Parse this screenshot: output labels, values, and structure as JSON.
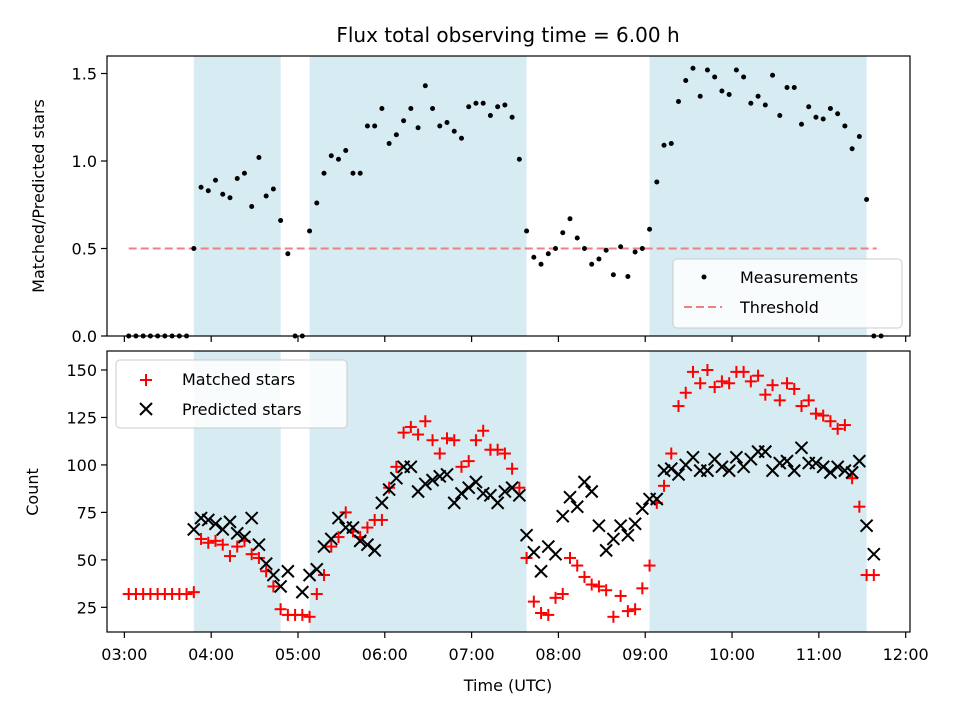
{
  "chart_data": [
    {
      "type": "scatter",
      "title": "Flux total observing time = 6.00 h",
      "xlabel": "",
      "ylabel": "Matched/Predicted stars",
      "xlim": [
        "02:48",
        "12:03"
      ],
      "ylim": [
        0,
        1.6
      ],
      "yticks": [
        0.0,
        0.5,
        1.0,
        1.5
      ],
      "ytick_labels": [
        "0.0",
        "0.5",
        "1.0",
        "1.5"
      ],
      "legend": {
        "location": "lower-right",
        "entries": [
          "Measurements",
          "Threshold"
        ]
      },
      "threshold": {
        "name": "Threshold",
        "value": 0.5,
        "x_start": "03:03",
        "x_end": "11:40",
        "color": "#f07f7f"
      },
      "shaded_intervals": [
        [
          "03:48",
          "04:48"
        ],
        [
          "05:08",
          "07:38"
        ],
        [
          "09:03",
          "11:33"
        ]
      ],
      "series": [
        {
          "name": "Measurements",
          "color": "#000000",
          "marker": "dot",
          "x": [
            "03:03",
            "03:08",
            "03:13",
            "03:18",
            "03:23",
            "03:28",
            "03:33",
            "03:38",
            "03:43",
            "03:48",
            "03:53",
            "03:58",
            "04:03",
            "04:08",
            "04:13",
            "04:18",
            "04:23",
            "04:28",
            "04:33",
            "04:38",
            "04:43",
            "04:48",
            "04:53",
            "04:58",
            "05:03",
            "05:08",
            "05:13",
            "05:18",
            "05:23",
            "05:28",
            "05:33",
            "05:38",
            "05:43",
            "05:48",
            "05:53",
            "05:58",
            "06:03",
            "06:08",
            "06:13",
            "06:18",
            "06:23",
            "06:28",
            "06:33",
            "06:38",
            "06:43",
            "06:48",
            "06:53",
            "06:58",
            "07:03",
            "07:08",
            "07:13",
            "07:18",
            "07:23",
            "07:28",
            "07:33",
            "07:38",
            "07:43",
            "07:48",
            "07:53",
            "07:58",
            "08:03",
            "08:08",
            "08:13",
            "08:18",
            "08:23",
            "08:28",
            "08:33",
            "08:38",
            "08:43",
            "08:48",
            "08:53",
            "08:58",
            "09:03",
            "09:08",
            "09:13",
            "09:18",
            "09:23",
            "09:28",
            "09:33",
            "09:38",
            "09:43",
            "09:48",
            "09:53",
            "09:58",
            "10:03",
            "10:08",
            "10:13",
            "10:18",
            "10:23",
            "10:28",
            "10:33",
            "10:38",
            "10:43",
            "10:48",
            "10:53",
            "10:58",
            "11:03",
            "11:08",
            "11:13",
            "11:18",
            "11:23",
            "11:28",
            "11:33",
            "11:38",
            "11:43"
          ],
          "y": [
            0.0,
            0.0,
            0.0,
            0.0,
            0.0,
            0.0,
            0.0,
            0.0,
            0.0,
            0.5,
            0.85,
            0.83,
            0.89,
            0.81,
            0.79,
            0.9,
            0.93,
            0.74,
            1.02,
            0.8,
            0.84,
            0.66,
            0.47,
            0.0,
            0.0,
            0.6,
            0.76,
            0.93,
            1.03,
            1.01,
            1.06,
            0.93,
            0.93,
            1.2,
            1.2,
            1.3,
            1.1,
            1.15,
            1.23,
            1.3,
            1.19,
            1.43,
            1.3,
            1.2,
            1.22,
            1.17,
            1.13,
            1.31,
            1.33,
            1.33,
            1.26,
            1.31,
            1.32,
            1.25,
            1.01,
            0.6,
            0.45,
            0.41,
            0.47,
            0.5,
            0.59,
            0.67,
            0.56,
            0.5,
            0.41,
            0.44,
            0.49,
            0.35,
            0.51,
            0.34,
            0.48,
            0.5,
            0.61,
            0.88,
            1.09,
            1.1,
            1.34,
            1.46,
            1.53,
            1.37,
            1.52,
            1.48,
            1.4,
            1.38,
            1.52,
            1.48,
            1.33,
            1.37,
            1.32,
            1.49,
            1.26,
            1.42,
            1.42,
            1.21,
            1.31,
            1.25,
            1.24,
            1.3,
            1.27,
            1.2,
            1.07,
            1.14,
            0.78,
            0.0,
            0.0
          ]
        }
      ]
    },
    {
      "type": "scatter",
      "title": "",
      "xlabel": "Time (UTC)",
      "ylabel": "Count",
      "xlim": [
        "02:48",
        "12:03"
      ],
      "ylim": [
        12,
        160
      ],
      "yticks": [
        25,
        50,
        75,
        100,
        125,
        150
      ],
      "ytick_labels": [
        "25",
        "50",
        "75",
        "100",
        "125",
        "150"
      ],
      "xticks": [
        "03:00",
        "04:00",
        "05:00",
        "06:00",
        "07:00",
        "08:00",
        "09:00",
        "10:00",
        "11:00",
        "12:00"
      ],
      "xtick_labels": [
        "03:00",
        "04:00",
        "05:00",
        "06:00",
        "07:00",
        "08:00",
        "09:00",
        "10:00",
        "11:00",
        "12:00"
      ],
      "legend": {
        "location": "upper-left",
        "entries": [
          "Matched stars",
          "Predicted stars"
        ]
      },
      "shaded_intervals": [
        [
          "03:48",
          "04:48"
        ],
        [
          "05:08",
          "07:38"
        ],
        [
          "09:03",
          "11:33"
        ]
      ],
      "series": [
        {
          "name": "Matched stars",
          "color": "#ff0000",
          "marker": "plus",
          "x": [
            "03:03",
            "03:08",
            "03:13",
            "03:18",
            "03:23",
            "03:28",
            "03:33",
            "03:38",
            "03:43",
            "03:48",
            "03:53",
            "03:58",
            "04:03",
            "04:08",
            "04:13",
            "04:18",
            "04:23",
            "04:28",
            "04:33",
            "04:38",
            "04:43",
            "04:48",
            "04:53",
            "04:58",
            "05:03",
            "05:08",
            "05:13",
            "05:18",
            "05:23",
            "05:28",
            "05:33",
            "05:38",
            "05:43",
            "05:48",
            "05:53",
            "05:58",
            "06:03",
            "06:08",
            "06:13",
            "06:18",
            "06:23",
            "06:28",
            "06:33",
            "06:38",
            "06:43",
            "06:48",
            "06:53",
            "06:58",
            "07:03",
            "07:08",
            "07:13",
            "07:18",
            "07:23",
            "07:28",
            "07:33",
            "07:38",
            "07:43",
            "07:48",
            "07:53",
            "07:58",
            "08:03",
            "08:08",
            "08:13",
            "08:18",
            "08:23",
            "08:28",
            "08:33",
            "08:38",
            "08:43",
            "08:48",
            "08:53",
            "08:58",
            "09:03",
            "09:08",
            "09:13",
            "09:18",
            "09:23",
            "09:28",
            "09:33",
            "09:38",
            "09:43",
            "09:48",
            "09:53",
            "09:58",
            "10:03",
            "10:08",
            "10:13",
            "10:18",
            "10:23",
            "10:28",
            "10:33",
            "10:38",
            "10:43",
            "10:48",
            "10:53",
            "10:58",
            "11:03",
            "11:08",
            "11:13",
            "11:18",
            "11:23",
            "11:28",
            "11:33",
            "11:38",
            "11:43"
          ],
          "y": [
            32,
            32,
            32,
            32,
            32,
            32,
            32,
            32,
            32,
            33,
            61,
            59,
            60,
            58,
            52,
            57,
            60,
            53,
            51,
            44,
            36,
            24,
            21,
            21,
            21,
            20,
            32,
            42,
            57,
            62,
            75,
            65,
            62,
            67,
            71,
            71,
            88,
            99,
            117,
            120,
            116,
            123,
            113,
            106,
            114,
            113,
            99,
            102,
            113,
            118,
            108,
            108,
            106,
            98,
            88,
            51,
            28,
            22,
            21,
            30,
            32,
            51,
            47,
            41,
            37,
            36,
            34,
            20,
            31,
            23,
            24,
            35,
            47,
            80,
            89,
            106,
            131,
            138,
            149,
            143,
            150,
            141,
            144,
            143,
            149,
            149,
            144,
            147,
            137,
            142,
            134,
            143,
            140,
            131,
            134,
            127,
            126,
            123,
            119,
            121,
            93,
            78,
            42,
            42,
            0
          ],
          "null_from_index": 104
        },
        {
          "name": "Predicted stars",
          "color": "#000000",
          "marker": "x",
          "x": [
            "03:48",
            "03:53",
            "03:58",
            "04:03",
            "04:08",
            "04:13",
            "04:18",
            "04:23",
            "04:28",
            "04:33",
            "04:38",
            "04:43",
            "04:48",
            "04:53",
            "05:03",
            "05:08",
            "05:13",
            "05:18",
            "05:23",
            "05:28",
            "05:33",
            "05:38",
            "05:43",
            "05:48",
            "05:53",
            "05:58",
            "06:03",
            "06:08",
            "06:13",
            "06:18",
            "06:23",
            "06:28",
            "06:33",
            "06:38",
            "06:43",
            "06:48",
            "06:53",
            "06:58",
            "07:03",
            "07:08",
            "07:13",
            "07:18",
            "07:23",
            "07:28",
            "07:33",
            "07:38",
            "07:43",
            "07:48",
            "07:53",
            "07:58",
            "08:03",
            "08:08",
            "08:13",
            "08:18",
            "08:23",
            "08:28",
            "08:33",
            "08:38",
            "08:43",
            "08:48",
            "08:53",
            "08:58",
            "09:03",
            "09:08",
            "09:13",
            "09:18",
            "09:23",
            "09:28",
            "09:33",
            "09:38",
            "09:43",
            "09:48",
            "09:53",
            "09:58",
            "10:03",
            "10:08",
            "10:13",
            "10:18",
            "10:23",
            "10:28",
            "10:33",
            "10:38",
            "10:43",
            "10:48",
            "10:53",
            "10:58",
            "11:03",
            "11:08",
            "11:13",
            "11:18",
            "11:23",
            "11:28",
            "11:33",
            "11:38",
            "11:43"
          ],
          "y": [
            66,
            72,
            71,
            69,
            66,
            70,
            64,
            62,
            72,
            58,
            48,
            42,
            36,
            44,
            33,
            42,
            45,
            57,
            61,
            72,
            67,
            67,
            60,
            58,
            55,
            80,
            87,
            93,
            99,
            99,
            86,
            90,
            92,
            94,
            95,
            80,
            85,
            88,
            91,
            85,
            84,
            80,
            86,
            88,
            84,
            63,
            54,
            44,
            57,
            53,
            73,
            83,
            78,
            91,
            86,
            68,
            55,
            61,
            68,
            63,
            69,
            77,
            82,
            82,
            97,
            98,
            95,
            100,
            104,
            97,
            97,
            103,
            99,
            97,
            104,
            99,
            103,
            107,
            107,
            97,
            101,
            102,
            97,
            109,
            101,
            101,
            99,
            96,
            99,
            97,
            96,
            102,
            68,
            53,
            0
          ],
          "null_from_index": 94
        }
      ]
    }
  ]
}
